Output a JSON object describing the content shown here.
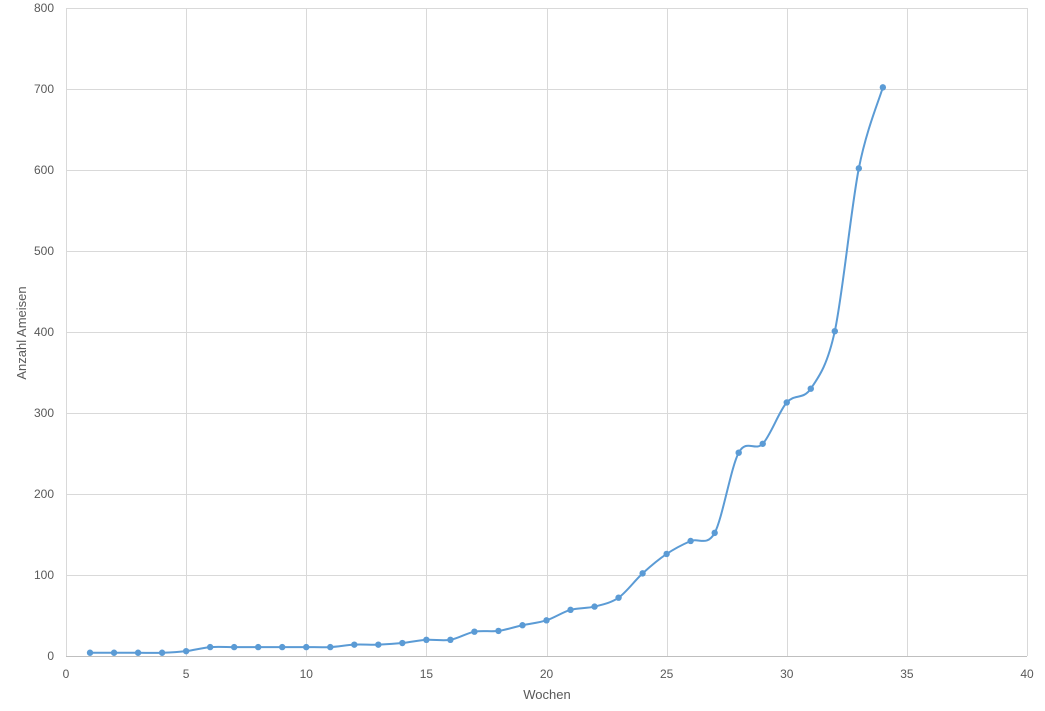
{
  "chart_data": {
    "type": "scatter",
    "title": "",
    "xlabel": "Wochen",
    "ylabel": "Anzahl Ameisen",
    "xlim": [
      0,
      40
    ],
    "ylim": [
      0,
      800
    ],
    "x_ticks": [
      "0",
      "5",
      "10",
      "15",
      "20",
      "25",
      "30",
      "35",
      "40"
    ],
    "y_ticks": [
      "0",
      "100",
      "200",
      "300",
      "400",
      "500",
      "600",
      "700",
      "800"
    ],
    "grid": true,
    "legend": "none",
    "series": [
      {
        "color": "#5B9BD5",
        "marker": "circle",
        "line": "smooth",
        "points": [
          [
            1,
            4
          ],
          [
            2,
            4
          ],
          [
            3,
            4
          ],
          [
            4,
            4
          ],
          [
            5,
            6
          ],
          [
            6,
            11
          ],
          [
            7,
            11
          ],
          [
            8,
            11
          ],
          [
            9,
            11
          ],
          [
            10,
            11
          ],
          [
            11,
            11
          ],
          [
            12,
            14
          ],
          [
            13,
            14
          ],
          [
            14,
            16
          ],
          [
            15,
            20
          ],
          [
            16,
            20
          ],
          [
            17,
            30
          ],
          [
            18,
            31
          ],
          [
            19,
            38
          ],
          [
            20,
            44
          ],
          [
            21,
            57
          ],
          [
            22,
            61
          ],
          [
            23,
            72
          ],
          [
            24,
            102
          ],
          [
            25,
            126
          ],
          [
            26,
            142
          ],
          [
            27,
            152
          ],
          [
            28,
            251
          ],
          [
            29,
            262
          ],
          [
            30,
            313
          ],
          [
            31,
            330
          ],
          [
            32,
            401
          ],
          [
            33,
            602
          ],
          [
            34,
            702
          ]
        ]
      }
    ]
  }
}
